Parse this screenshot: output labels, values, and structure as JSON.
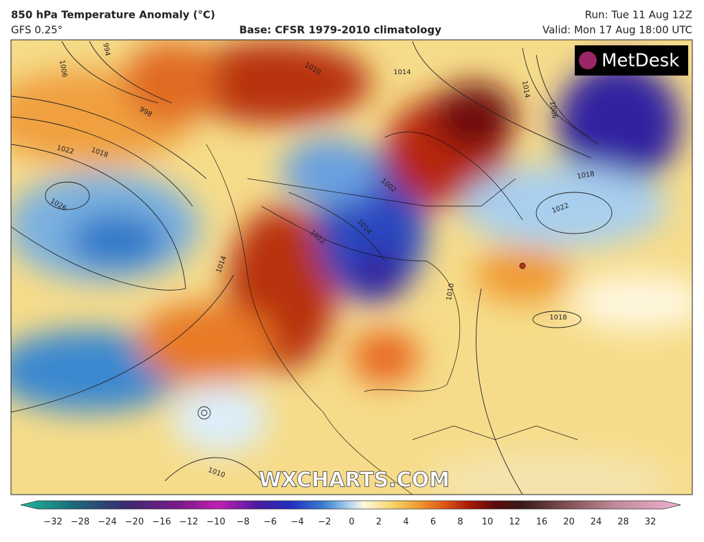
{
  "header": {
    "title": "850 hPa Temperature Anomaly (°C)",
    "model": "GFS 0.25°",
    "base": "Base: CFSR 1979-2010 climatology",
    "run": "Run: Tue 11 Aug 12Z",
    "valid": "Valid: Mon 17 Aug 18:00 UTC"
  },
  "logo": "MetDesk",
  "watermark": "WXCHARTS.COM",
  "isobar_labels": [
    994,
    1006,
    998,
    1022,
    1018,
    1026,
    1014,
    1022,
    1014,
    1002,
    1014,
    1010,
    1014,
    1006,
    1018,
    1022,
    1010,
    1018,
    1010
  ],
  "colorbar": {
    "ticks": [
      "−32",
      "−28",
      "−24",
      "−20",
      "−16",
      "−12",
      "−10",
      "−8",
      "−6",
      "−4",
      "−2",
      "0",
      "2",
      "4",
      "6",
      "8",
      "10",
      "12",
      "16",
      "20",
      "24",
      "28",
      "32"
    ]
  }
}
